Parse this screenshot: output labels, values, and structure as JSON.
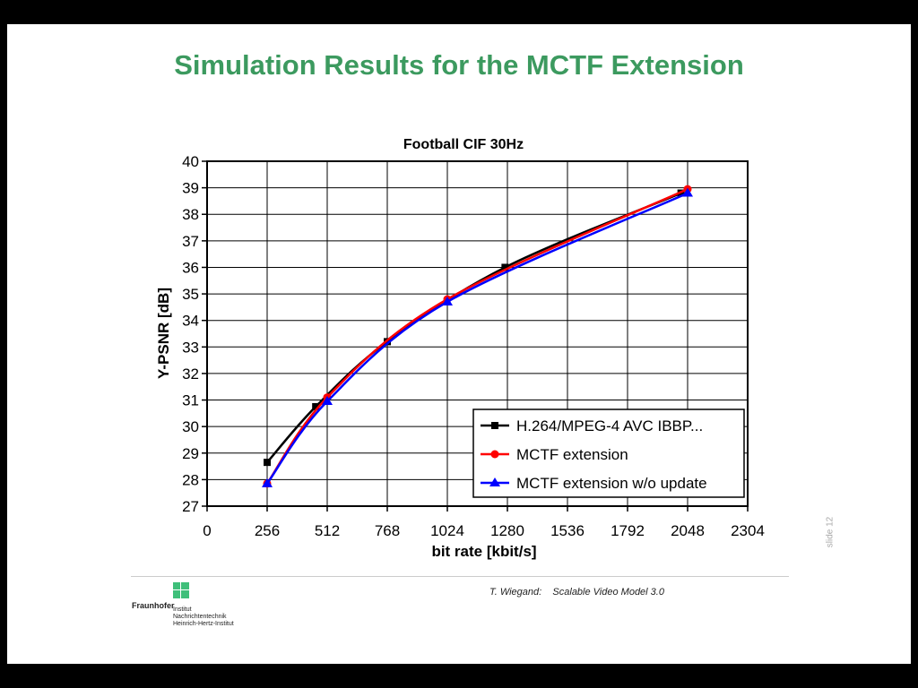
{
  "slide": {
    "title": "Simulation Results for the MCTF Extension",
    "footer_author": "T. Wiegand:    Scalable Video Model 3.0",
    "slide_number": "slide 12",
    "logo": {
      "org": "Fraunhofer",
      "institute_lines": [
        "Institut",
        "Nachrichtentechnik",
        "Heinrich-Hertz-Institut"
      ]
    }
  },
  "chart_data": {
    "type": "line",
    "title": "Football CIF 30Hz",
    "xlabel": "bit rate [kbit/s]",
    "ylabel": "Y-PSNR [dB]",
    "xlim": [
      0,
      2304
    ],
    "ylim": [
      27,
      40
    ],
    "xticks": [
      0,
      256,
      512,
      768,
      1024,
      1280,
      1536,
      1792,
      2048,
      2304
    ],
    "yticks": [
      27,
      28,
      29,
      30,
      31,
      32,
      33,
      34,
      35,
      36,
      37,
      38,
      39,
      40
    ],
    "grid": true,
    "legend_position": "bottom-right",
    "series": [
      {
        "name": "H.264/MPEG-4 AVC IBBP...",
        "color": "#000000",
        "marker": "square",
        "x": [
          256,
          463,
          768,
          1270,
          2020
        ],
        "y": [
          28.65,
          30.75,
          33.2,
          36.0,
          38.8
        ]
      },
      {
        "name": "MCTF extension",
        "color": "#ff0000",
        "marker": "circle",
        "x": [
          256,
          512,
          1024,
          2048
        ],
        "y": [
          27.85,
          31.1,
          34.8,
          38.95
        ]
      },
      {
        "name": "MCTF extension w/o update",
        "color": "#0000ff",
        "marker": "triangle",
        "x": [
          256,
          512,
          1024,
          2048
        ],
        "y": [
          27.85,
          30.95,
          34.7,
          38.8
        ]
      }
    ]
  }
}
